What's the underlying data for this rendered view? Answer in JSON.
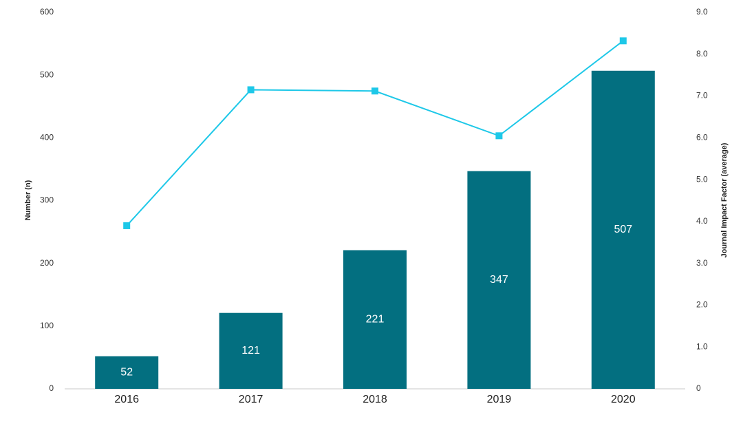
{
  "chart_data": {
    "type": "bar",
    "y_label": "Number (n)",
    "y2_label": "Journal Impact Factor (average)",
    "categories": [
      "2016",
      "2017",
      "2018",
      "2019",
      "2020"
    ],
    "series": [
      {
        "type": "bar",
        "color": "#036f80",
        "values": [
          52,
          121,
          221,
          347,
          507
        ]
      },
      {
        "type": "line",
        "axis": "y2",
        "color": "#1ec8e8",
        "values": [
          3.9,
          7.15,
          7.12,
          6.05,
          8.32
        ]
      }
    ],
    "ylim": [
      0,
      600
    ],
    "yticks": [
      0,
      100,
      200,
      300,
      400,
      500,
      600
    ],
    "y2lim": [
      0,
      9
    ],
    "y2ticks": [
      0,
      {
        "value": 1,
        "label": "1.0"
      },
      {
        "value": 2,
        "label": "2.0"
      },
      {
        "value": 3,
        "label": "3.0"
      },
      {
        "value": 4,
        "label": "4.0"
      },
      {
        "value": 5,
        "label": "5.0"
      },
      {
        "value": 6,
        "label": "6.0"
      },
      {
        "value": 7,
        "label": "7.0"
      },
      {
        "value": 8,
        "label": "8.0"
      },
      {
        "value": 9,
        "label": "9.0"
      }
    ],
    "grid": false
  }
}
